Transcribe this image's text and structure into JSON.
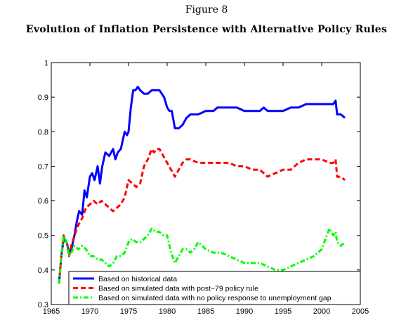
{
  "figure_label": "Figure 8",
  "chart_data": {
    "type": "line",
    "title": "Evolution of Inflation Persistence with Alternative Policy Rules",
    "xlabel": "",
    "ylabel": "",
    "xlim": [
      1965,
      2005
    ],
    "ylim": [
      0.3,
      1.0
    ],
    "xticks": [
      1965,
      1970,
      1975,
      1980,
      1985,
      1990,
      1995,
      2000,
      2005
    ],
    "yticks": [
      0.3,
      0.4,
      0.5,
      0.6,
      0.7,
      0.8,
      0.9,
      1.0
    ],
    "ytick_labels": [
      "0.3",
      "0.4",
      "0.5",
      "0.6",
      "0.7",
      "0.8",
      "0.9",
      "1"
    ],
    "grid": false,
    "legend_position": "bottom",
    "series": [
      {
        "name": "Based on historical data",
        "color": "#0000ff",
        "style": "solid",
        "points": [
          [
            1966.0,
            0.36
          ],
          [
            1966.3,
            0.44
          ],
          [
            1966.6,
            0.49
          ],
          [
            1967.0,
            0.48
          ],
          [
            1967.3,
            0.45
          ],
          [
            1967.6,
            0.46
          ],
          [
            1968.0,
            0.5
          ],
          [
            1968.3,
            0.54
          ],
          [
            1968.6,
            0.57
          ],
          [
            1969.0,
            0.56
          ],
          [
            1969.3,
            0.63
          ],
          [
            1969.6,
            0.61
          ],
          [
            1970.0,
            0.67
          ],
          [
            1970.3,
            0.68
          ],
          [
            1970.6,
            0.66
          ],
          [
            1971.0,
            0.7
          ],
          [
            1971.3,
            0.65
          ],
          [
            1971.6,
            0.7
          ],
          [
            1972.0,
            0.74
          ],
          [
            1972.5,
            0.73
          ],
          [
            1973.0,
            0.75
          ],
          [
            1973.3,
            0.72
          ],
          [
            1973.6,
            0.74
          ],
          [
            1974.0,
            0.75
          ],
          [
            1974.5,
            0.8
          ],
          [
            1974.8,
            0.79
          ],
          [
            1975.0,
            0.8
          ],
          [
            1975.3,
            0.87
          ],
          [
            1975.6,
            0.92
          ],
          [
            1975.9,
            0.92
          ],
          [
            1976.2,
            0.93
          ],
          [
            1976.5,
            0.92
          ],
          [
            1977.0,
            0.91
          ],
          [
            1977.5,
            0.91
          ],
          [
            1978.0,
            0.92
          ],
          [
            1978.5,
            0.92
          ],
          [
            1979.0,
            0.92
          ],
          [
            1979.3,
            0.91
          ],
          [
            1979.6,
            0.9
          ],
          [
            1980.0,
            0.87
          ],
          [
            1980.3,
            0.86
          ],
          [
            1980.6,
            0.86
          ],
          [
            1981.0,
            0.81
          ],
          [
            1981.5,
            0.81
          ],
          [
            1982.0,
            0.82
          ],
          [
            1982.5,
            0.84
          ],
          [
            1983.0,
            0.85
          ],
          [
            1983.5,
            0.85
          ],
          [
            1984.0,
            0.85
          ],
          [
            1985.0,
            0.86
          ],
          [
            1986.0,
            0.86
          ],
          [
            1986.5,
            0.87
          ],
          [
            1987.0,
            0.87
          ],
          [
            1988.0,
            0.87
          ],
          [
            1989.0,
            0.87
          ],
          [
            1990.0,
            0.86
          ],
          [
            1991.0,
            0.86
          ],
          [
            1991.5,
            0.86
          ],
          [
            1992.0,
            0.86
          ],
          [
            1992.5,
            0.87
          ],
          [
            1993.0,
            0.86
          ],
          [
            1993.5,
            0.86
          ],
          [
            1994.0,
            0.86
          ],
          [
            1995.0,
            0.86
          ],
          [
            1996.0,
            0.87
          ],
          [
            1997.0,
            0.87
          ],
          [
            1998.0,
            0.88
          ],
          [
            1999.0,
            0.88
          ],
          [
            2000.0,
            0.88
          ],
          [
            2001.0,
            0.88
          ],
          [
            2001.5,
            0.88
          ],
          [
            2001.8,
            0.89
          ],
          [
            2002.0,
            0.85
          ],
          [
            2002.5,
            0.85
          ],
          [
            2003.0,
            0.84
          ]
        ]
      },
      {
        "name": "Based on simulated data with post−79 policy rule",
        "color": "#ff0000",
        "style": "dashed",
        "points": [
          [
            1966.0,
            0.36
          ],
          [
            1966.3,
            0.44
          ],
          [
            1966.6,
            0.5
          ],
          [
            1967.0,
            0.48
          ],
          [
            1967.3,
            0.44
          ],
          [
            1967.6,
            0.47
          ],
          [
            1968.0,
            0.5
          ],
          [
            1968.5,
            0.53
          ],
          [
            1969.0,
            0.55
          ],
          [
            1969.5,
            0.58
          ],
          [
            1970.0,
            0.59
          ],
          [
            1970.5,
            0.6
          ],
          [
            1971.0,
            0.59
          ],
          [
            1971.5,
            0.6
          ],
          [
            1972.0,
            0.59
          ],
          [
            1972.5,
            0.58
          ],
          [
            1973.0,
            0.57
          ],
          [
            1973.5,
            0.58
          ],
          [
            1974.0,
            0.59
          ],
          [
            1974.5,
            0.61
          ],
          [
            1975.0,
            0.66
          ],
          [
            1975.5,
            0.65
          ],
          [
            1976.0,
            0.64
          ],
          [
            1976.5,
            0.65
          ],
          [
            1977.0,
            0.7
          ],
          [
            1977.5,
            0.72
          ],
          [
            1978.0,
            0.75
          ],
          [
            1978.3,
            0.74
          ],
          [
            1978.6,
            0.75
          ],
          [
            1979.0,
            0.75
          ],
          [
            1979.5,
            0.73
          ],
          [
            1980.0,
            0.71
          ],
          [
            1980.5,
            0.69
          ],
          [
            1981.0,
            0.67
          ],
          [
            1981.5,
            0.69
          ],
          [
            1982.0,
            0.71
          ],
          [
            1982.5,
            0.72
          ],
          [
            1983.0,
            0.72
          ],
          [
            1984.0,
            0.71
          ],
          [
            1985.0,
            0.71
          ],
          [
            1986.0,
            0.71
          ],
          [
            1987.0,
            0.71
          ],
          [
            1988.0,
            0.71
          ],
          [
            1989.0,
            0.7
          ],
          [
            1990.0,
            0.7
          ],
          [
            1991.0,
            0.69
          ],
          [
            1992.0,
            0.69
          ],
          [
            1993.0,
            0.67
          ],
          [
            1994.0,
            0.68
          ],
          [
            1995.0,
            0.69
          ],
          [
            1996.0,
            0.69
          ],
          [
            1997.0,
            0.71
          ],
          [
            1998.0,
            0.72
          ],
          [
            1999.0,
            0.72
          ],
          [
            2000.0,
            0.72
          ],
          [
            2001.0,
            0.71
          ],
          [
            2001.5,
            0.71
          ],
          [
            2001.8,
            0.72
          ],
          [
            2002.0,
            0.67
          ],
          [
            2002.5,
            0.67
          ],
          [
            2003.0,
            0.66
          ]
        ]
      },
      {
        "name": "Based on simulated data with no policy response to unemployment gap",
        "color": "#00ff00",
        "style": "dash-dot",
        "points": [
          [
            1966.0,
            0.36
          ],
          [
            1966.3,
            0.44
          ],
          [
            1966.6,
            0.5
          ],
          [
            1967.0,
            0.48
          ],
          [
            1967.3,
            0.44
          ],
          [
            1967.6,
            0.45
          ],
          [
            1968.0,
            0.47
          ],
          [
            1968.5,
            0.46
          ],
          [
            1969.0,
            0.47
          ],
          [
            1969.5,
            0.46
          ],
          [
            1970.0,
            0.44
          ],
          [
            1970.5,
            0.44
          ],
          [
            1971.0,
            0.43
          ],
          [
            1971.5,
            0.43
          ],
          [
            1972.0,
            0.42
          ],
          [
            1972.5,
            0.41
          ],
          [
            1973.0,
            0.42
          ],
          [
            1973.5,
            0.44
          ],
          [
            1974.0,
            0.44
          ],
          [
            1974.5,
            0.45
          ],
          [
            1975.0,
            0.48
          ],
          [
            1975.5,
            0.49
          ],
          [
            1976.0,
            0.48
          ],
          [
            1976.5,
            0.48
          ],
          [
            1977.0,
            0.49
          ],
          [
            1977.5,
            0.5
          ],
          [
            1978.0,
            0.52
          ],
          [
            1978.5,
            0.51
          ],
          [
            1979.0,
            0.51
          ],
          [
            1979.5,
            0.5
          ],
          [
            1980.0,
            0.5
          ],
          [
            1980.5,
            0.45
          ],
          [
            1981.0,
            0.42
          ],
          [
            1981.5,
            0.44
          ],
          [
            1982.0,
            0.46
          ],
          [
            1982.5,
            0.46
          ],
          [
            1983.0,
            0.45
          ],
          [
            1983.5,
            0.46
          ],
          [
            1984.0,
            0.48
          ],
          [
            1985.0,
            0.46
          ],
          [
            1986.0,
            0.45
          ],
          [
            1987.0,
            0.45
          ],
          [
            1988.0,
            0.44
          ],
          [
            1989.0,
            0.43
          ],
          [
            1990.0,
            0.42
          ],
          [
            1991.0,
            0.42
          ],
          [
            1992.0,
            0.42
          ],
          [
            1993.0,
            0.41
          ],
          [
            1994.0,
            0.4
          ],
          [
            1995.0,
            0.4
          ],
          [
            1996.0,
            0.41
          ],
          [
            1997.0,
            0.42
          ],
          [
            1998.0,
            0.43
          ],
          [
            1999.0,
            0.44
          ],
          [
            2000.0,
            0.46
          ],
          [
            2000.5,
            0.49
          ],
          [
            2001.0,
            0.52
          ],
          [
            2001.5,
            0.5
          ],
          [
            2001.8,
            0.51
          ],
          [
            2002.0,
            0.48
          ],
          [
            2002.5,
            0.47
          ],
          [
            2003.0,
            0.48
          ]
        ]
      }
    ]
  }
}
